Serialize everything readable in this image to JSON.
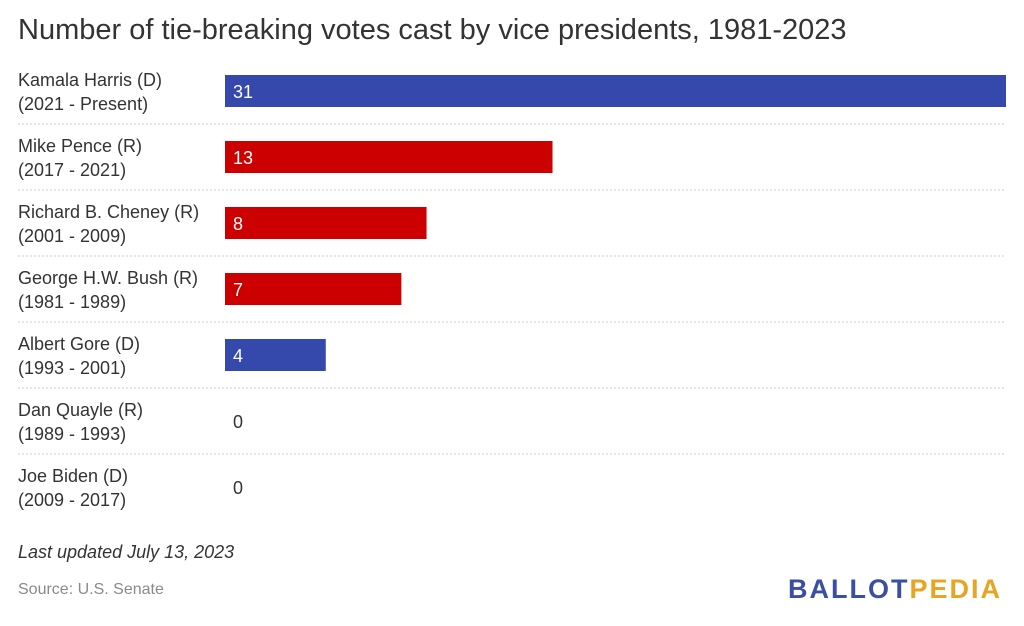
{
  "chart_data": {
    "type": "bar",
    "orientation": "horizontal",
    "title": "Number of tie-breaking votes cast by vice presidents, 1981-2023",
    "categories": [
      [
        "Kamala Harris (D)",
        "(2021 - Present)"
      ],
      [
        "Mike Pence (R)",
        "(2017 - 2021)"
      ],
      [
        "Richard B. Cheney (R)",
        "(2001 - 2009)"
      ],
      [
        "George H.W. Bush (R)",
        "(1981 - 1989)"
      ],
      [
        "Albert Gore (D)",
        "(1993 - 2001)"
      ],
      [
        "Dan Quayle (R)",
        "(1989 - 1993)"
      ],
      [
        "Joe Biden (D)",
        "(2009 - 2017)"
      ]
    ],
    "values": [
      31,
      13,
      8,
      7,
      4,
      0,
      0
    ],
    "parties": [
      "D",
      "R",
      "R",
      "R",
      "D",
      "R",
      "D"
    ],
    "colors": {
      "D": "#3549ad",
      "R": "#cc0000"
    },
    "xlim": [
      0,
      31
    ],
    "grid": false,
    "legend": "none"
  },
  "note": "Last updated July 13, 2023",
  "source": "Source: U.S. Senate",
  "logo": {
    "part1": "BALLOT",
    "part2": "PEDIA"
  }
}
